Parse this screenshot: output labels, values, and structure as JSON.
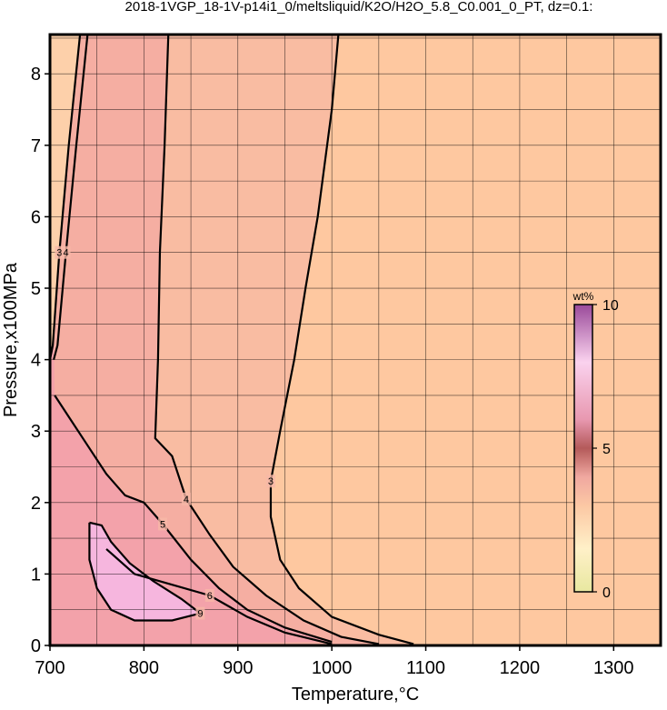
{
  "chart_data": {
    "type": "contour",
    "title": "2018-1VGP_18-1V-p14i1_0/meltsliquid/K2O/H2O_5.8_C0.001_0_PT, dz=0.1:",
    "xlabel": "Temperature,°C",
    "ylabel": "Pressure,x100MPa",
    "xlim": [
      700,
      1350
    ],
    "ylim": [
      0,
      8.55
    ],
    "xticks": [
      700,
      800,
      900,
      1000,
      1100,
      1200,
      1300
    ],
    "yticks": [
      0,
      1,
      2,
      3,
      4,
      5,
      6,
      7,
      8
    ],
    "xgrid": [
      750,
      800,
      850,
      900,
      950,
      1000,
      1050,
      1100,
      1150,
      1200,
      1250,
      1300
    ],
    "ygrid": [
      0.5,
      1,
      1.5,
      2,
      2.5,
      3,
      3.5,
      4,
      4.5,
      5,
      5.5,
      6,
      6.5,
      7,
      7.5,
      8,
      8.5
    ],
    "series": [
      {
        "level": 3,
        "fill": "#f9bca2",
        "color": "#000000",
        "x": [
          1007,
          1000,
          985,
          972,
          960,
          945,
          935,
          935,
          945,
          965,
          1000,
          1050,
          1087
        ],
        "y": [
          8.55,
          7.5,
          6,
          5,
          4,
          3,
          2.3,
          1.8,
          1.2,
          0.8,
          0.4,
          0.15,
          0.02
        ]
      },
      {
        "level": 4,
        "fill": "#f5aea2",
        "color": "#000000",
        "x": [
          826,
          822,
          817,
          815,
          812,
          830,
          845,
          870,
          895,
          930,
          970,
          1010,
          1050
        ],
        "y": [
          8.55,
          7,
          5.5,
          4,
          2.9,
          2.65,
          2.05,
          1.55,
          1.1,
          0.7,
          0.35,
          0.12,
          0.02
        ]
      },
      {
        "level": 5,
        "fill": "#f3a2aa",
        "color": "#000000",
        "x": [
          705,
          720,
          740,
          760,
          780,
          800,
          820,
          850,
          880,
          910,
          950,
          1000
        ],
        "y": [
          3.5,
          3.2,
          2.8,
          2.4,
          2.1,
          2.0,
          1.7,
          1.2,
          0.8,
          0.5,
          0.25,
          0.05
        ]
      },
      {
        "level": 6,
        "color": "#000000",
        "x": [
          760,
          790,
          830,
          870,
          910,
          950,
          1000
        ],
        "y": [
          1.35,
          1.0,
          0.85,
          0.7,
          0.4,
          0.18,
          0.02
        ]
      },
      {
        "level": 9,
        "fill": "#f6b6de",
        "color": "#000000",
        "x": [
          742,
          755,
          765,
          785,
          810,
          840,
          860,
          830,
          790,
          765,
          750,
          742,
          742
        ],
        "y": [
          1.72,
          1.68,
          1.45,
          1.15,
          0.9,
          0.65,
          0.45,
          0.35,
          0.35,
          0.5,
          0.8,
          1.2,
          1.72
        ]
      },
      {
        "level": 3,
        "fill": "#fdd0aa",
        "color": "#000000",
        "x": [
          700,
          703,
          710,
          720,
          732
        ],
        "y": [
          4.0,
          4.2,
          5.5,
          7,
          8.55
        ]
      },
      {
        "level": 4,
        "color": "#000000",
        "x": [
          704,
          708,
          717,
          728,
          740
        ],
        "y": [
          4.0,
          4.2,
          5.5,
          7,
          8.55
        ]
      }
    ],
    "colorbar": {
      "label": "wt%",
      "clim": [
        0,
        10
      ],
      "cticks": [
        0,
        5,
        10
      ],
      "colormap": [
        {
          "value": 0,
          "color": "#e8e8a0"
        },
        {
          "value": 1.5,
          "color": "#fff0c8"
        },
        {
          "value": 3,
          "color": "#fcc8a4"
        },
        {
          "value": 4,
          "color": "#f0a8a0"
        },
        {
          "value": 5,
          "color": "#b45a5a"
        },
        {
          "value": 6,
          "color": "#e898b0"
        },
        {
          "value": 8,
          "color": "#fad2ee"
        },
        {
          "value": 10,
          "color": "#9a4a9a"
        }
      ]
    }
  }
}
